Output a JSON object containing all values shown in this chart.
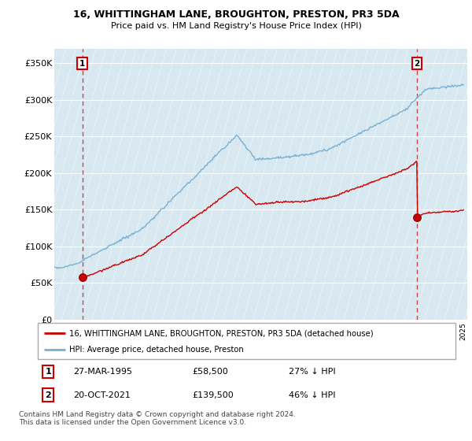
{
  "title": "16, WHITTINGHAM LANE, BROUGHTON, PRESTON, PR3 5DA",
  "subtitle": "Price paid vs. HM Land Registry's House Price Index (HPI)",
  "ylabel_ticks": [
    "£0",
    "£50K",
    "£100K",
    "£150K",
    "£200K",
    "£250K",
    "£300K",
    "£350K"
  ],
  "ytick_values": [
    0,
    50000,
    100000,
    150000,
    200000,
    250000,
    300000,
    350000
  ],
  "ylim": [
    0,
    370000
  ],
  "xlim_start": 1993.0,
  "xlim_end": 2025.8,
  "sale1_x": 1995.23,
  "sale1_y": 58500,
  "sale1_label": "27-MAR-1995",
  "sale1_price": "£58,500",
  "sale1_hpi": "27% ↓ HPI",
  "sale2_x": 2021.8,
  "sale2_y": 139500,
  "sale2_label": "20-OCT-2021",
  "sale2_price": "£139,500",
  "sale2_hpi": "46% ↓ HPI",
  "line_color_red": "#cc0000",
  "line_color_blue": "#7ab0d4",
  "legend_line1": "16, WHITTINGHAM LANE, BROUGHTON, PRESTON, PR3 5DA (detached house)",
  "legend_line2": "HPI: Average price, detached house, Preston",
  "footnote": "Contains HM Land Registry data © Crown copyright and database right 2024.\nThis data is licensed under the Open Government Licence v3.0."
}
